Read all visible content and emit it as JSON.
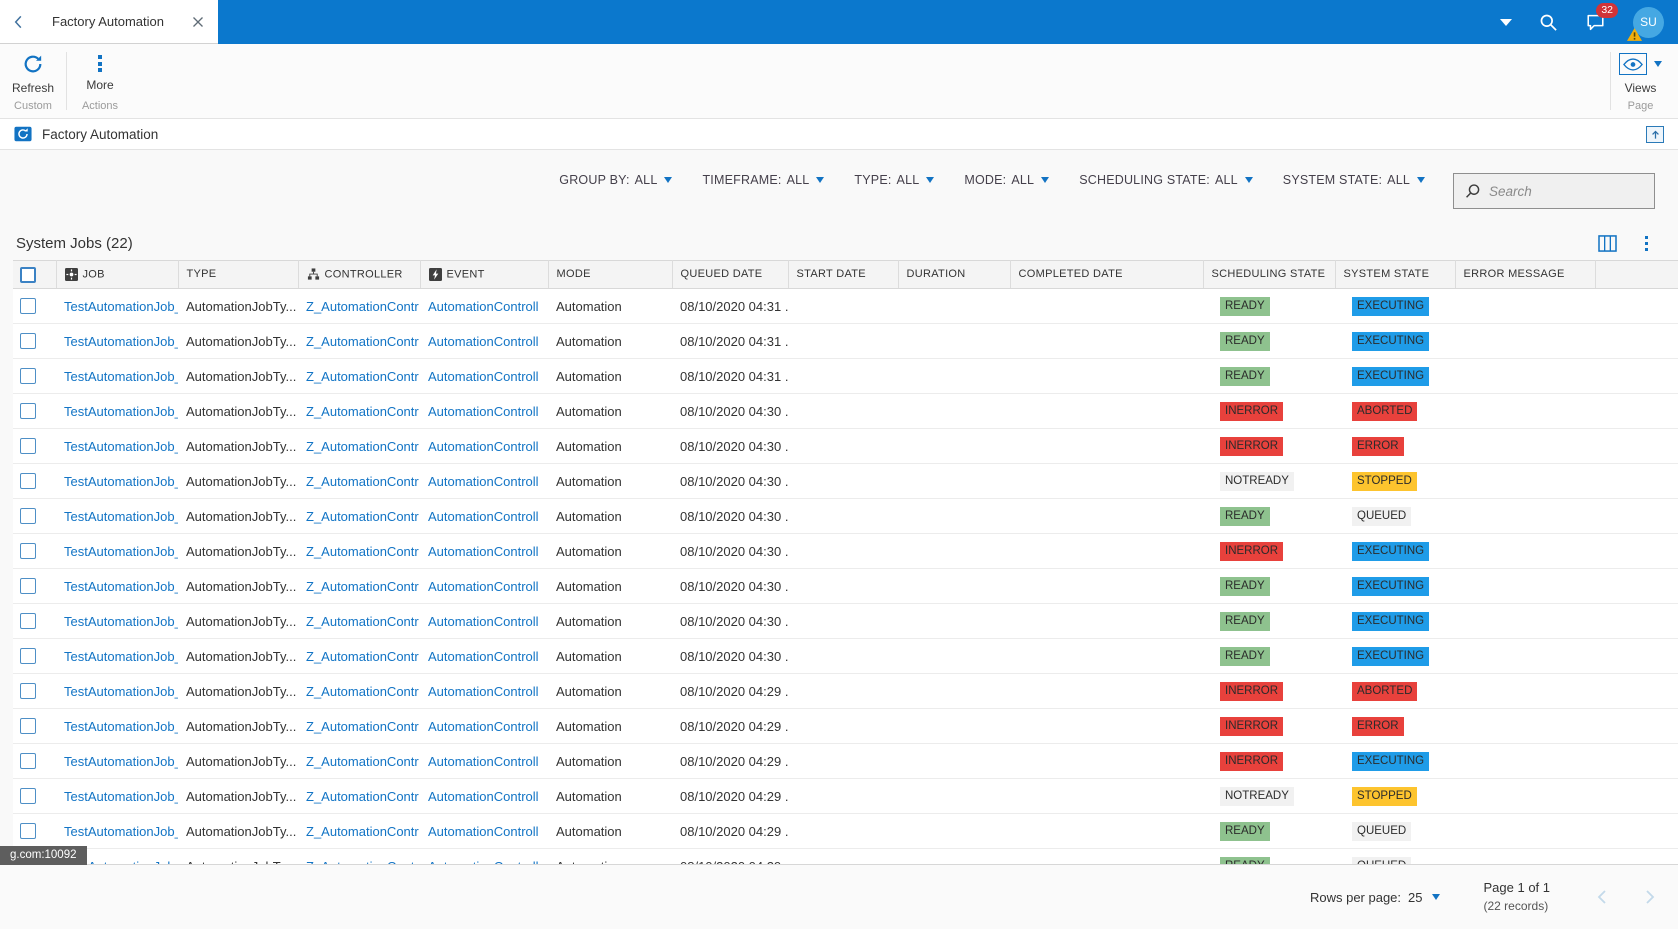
{
  "topbar": {
    "tab_title": "Factory Automation",
    "badge_count": "32",
    "avatar_initials": "SU"
  },
  "ribbon": {
    "refresh_label": "Refresh",
    "more_label": "More",
    "group_custom": "Custom",
    "group_actions": "Actions",
    "views_label": "Views",
    "group_page": "Page"
  },
  "page": {
    "title": "Factory Automation"
  },
  "filters": [
    {
      "label": "GROUP BY:",
      "value": "ALL"
    },
    {
      "label": "TIMEFRAME:",
      "value": "ALL"
    },
    {
      "label": "TYPE:",
      "value": "ALL"
    },
    {
      "label": "MODE:",
      "value": "ALL"
    },
    {
      "label": "SCHEDULING STATE:",
      "value": "ALL"
    },
    {
      "label": "SYSTEM STATE:",
      "value": "ALL"
    }
  ],
  "search": {
    "placeholder": "Search"
  },
  "grid": {
    "title": "System Jobs (22)",
    "columns": [
      {
        "label": "JOB",
        "icon": "entity"
      },
      {
        "label": "TYPE"
      },
      {
        "label": "CONTROLLER",
        "icon": "sitemap"
      },
      {
        "label": "EVENT",
        "icon": "lightning"
      },
      {
        "label": "MODE"
      },
      {
        "label": "QUEUED DATE"
      },
      {
        "label": "START DATE"
      },
      {
        "label": "DURATION"
      },
      {
        "label": "COMPLETED DATE"
      },
      {
        "label": "SCHEDULING STATE"
      },
      {
        "label": "SYSTEM STATE"
      },
      {
        "label": "ERROR MESSAGE"
      }
    ],
    "state_colors": {
      "READY": "#8ec28e",
      "INERROR": "#e8413c",
      "NOTREADY": "#f1f1f1",
      "EXECUTING": "#1f9ce8",
      "ABORTED": "#e8413c",
      "ERROR": "#e8413c",
      "STOPPED": "#fdc42e",
      "QUEUED": "#f1f1f1"
    },
    "rows": [
      {
        "job": "TestAutomationJob_",
        "type": "AutomationJobTy...",
        "controller": "Z_AutomationContr",
        "event": "AutomationControll",
        "mode": "Automation",
        "queued": "08/10/2020 04:31 ...",
        "start": "",
        "duration": "",
        "completed": "",
        "scheduling": "READY",
        "system": "EXECUTING",
        "error": ""
      },
      {
        "job": "TestAutomationJob_",
        "type": "AutomationJobTy...",
        "controller": "Z_AutomationContr",
        "event": "AutomationControll",
        "mode": "Automation",
        "queued": "08/10/2020 04:31 ...",
        "start": "",
        "duration": "",
        "completed": "",
        "scheduling": "READY",
        "system": "EXECUTING",
        "error": ""
      },
      {
        "job": "TestAutomationJob_",
        "type": "AutomationJobTy...",
        "controller": "Z_AutomationContr",
        "event": "AutomationControll",
        "mode": "Automation",
        "queued": "08/10/2020 04:31 ...",
        "start": "",
        "duration": "",
        "completed": "",
        "scheduling": "READY",
        "system": "EXECUTING",
        "error": ""
      },
      {
        "job": "TestAutomationJob_",
        "type": "AutomationJobTy...",
        "controller": "Z_AutomationContr",
        "event": "AutomationControll",
        "mode": "Automation",
        "queued": "08/10/2020 04:30 ...",
        "start": "",
        "duration": "",
        "completed": "",
        "scheduling": "INERROR",
        "system": "ABORTED",
        "error": ""
      },
      {
        "job": "TestAutomationJob_",
        "type": "AutomationJobTy...",
        "controller": "Z_AutomationContr",
        "event": "AutomationControll",
        "mode": "Automation",
        "queued": "08/10/2020 04:30 ...",
        "start": "",
        "duration": "",
        "completed": "",
        "scheduling": "INERROR",
        "system": "ERROR",
        "error": ""
      },
      {
        "job": "TestAutomationJob_",
        "type": "AutomationJobTy...",
        "controller": "Z_AutomationContr",
        "event": "AutomationControll",
        "mode": "Automation",
        "queued": "08/10/2020 04:30 ...",
        "start": "",
        "duration": "",
        "completed": "",
        "scheduling": "NOTREADY",
        "system": "STOPPED",
        "error": ""
      },
      {
        "job": "TestAutomationJob_",
        "type": "AutomationJobTy...",
        "controller": "Z_AutomationContr",
        "event": "AutomationControll",
        "mode": "Automation",
        "queued": "08/10/2020 04:30 ...",
        "start": "",
        "duration": "",
        "completed": "",
        "scheduling": "READY",
        "system": "QUEUED",
        "error": ""
      },
      {
        "job": "TestAutomationJob_",
        "type": "AutomationJobTy...",
        "controller": "Z_AutomationContr",
        "event": "AutomationControll",
        "mode": "Automation",
        "queued": "08/10/2020 04:30 ...",
        "start": "",
        "duration": "",
        "completed": "",
        "scheduling": "INERROR",
        "system": "EXECUTING",
        "error": ""
      },
      {
        "job": "TestAutomationJob_",
        "type": "AutomationJobTy...",
        "controller": "Z_AutomationContr",
        "event": "AutomationControll",
        "mode": "Automation",
        "queued": "08/10/2020 04:30 ...",
        "start": "",
        "duration": "",
        "completed": "",
        "scheduling": "READY",
        "system": "EXECUTING",
        "error": ""
      },
      {
        "job": "TestAutomationJob_",
        "type": "AutomationJobTy...",
        "controller": "Z_AutomationContr",
        "event": "AutomationControll",
        "mode": "Automation",
        "queued": "08/10/2020 04:30 ...",
        "start": "",
        "duration": "",
        "completed": "",
        "scheduling": "READY",
        "system": "EXECUTING",
        "error": ""
      },
      {
        "job": "TestAutomationJob_",
        "type": "AutomationJobTy...",
        "controller": "Z_AutomationContr",
        "event": "AutomationControll",
        "mode": "Automation",
        "queued": "08/10/2020 04:30 ...",
        "start": "",
        "duration": "",
        "completed": "",
        "scheduling": "READY",
        "system": "EXECUTING",
        "error": ""
      },
      {
        "job": "TestAutomationJob_",
        "type": "AutomationJobTy...",
        "controller": "Z_AutomationContr",
        "event": "AutomationControll",
        "mode": "Automation",
        "queued": "08/10/2020 04:29 ...",
        "start": "",
        "duration": "",
        "completed": "",
        "scheduling": "INERROR",
        "system": "ABORTED",
        "error": ""
      },
      {
        "job": "TestAutomationJob_",
        "type": "AutomationJobTy...",
        "controller": "Z_AutomationContr",
        "event": "AutomationControll",
        "mode": "Automation",
        "queued": "08/10/2020 04:29 ...",
        "start": "",
        "duration": "",
        "completed": "",
        "scheduling": "INERROR",
        "system": "ERROR",
        "error": ""
      },
      {
        "job": "TestAutomationJob_",
        "type": "AutomationJobTy...",
        "controller": "Z_AutomationContr",
        "event": "AutomationControll",
        "mode": "Automation",
        "queued": "08/10/2020 04:29 ...",
        "start": "",
        "duration": "",
        "completed": "",
        "scheduling": "INERROR",
        "system": "EXECUTING",
        "error": ""
      },
      {
        "job": "TestAutomationJob_",
        "type": "AutomationJobTy...",
        "controller": "Z_AutomationContr",
        "event": "AutomationControll",
        "mode": "Automation",
        "queued": "08/10/2020 04:29 ...",
        "start": "",
        "duration": "",
        "completed": "",
        "scheduling": "NOTREADY",
        "system": "STOPPED",
        "error": ""
      },
      {
        "job": "TestAutomationJob_",
        "type": "AutomationJobTy...",
        "controller": "Z_AutomationContr",
        "event": "AutomationControll",
        "mode": "Automation",
        "queued": "08/10/2020 04:29 ...",
        "start": "",
        "duration": "",
        "completed": "",
        "scheduling": "READY",
        "system": "QUEUED",
        "error": ""
      },
      {
        "job": "TestAutomationJob_",
        "type": "AutomationJobTy...",
        "controller": "Z_AutomationContr",
        "event": "AutomationControll",
        "mode": "Automation",
        "queued": "08/10/2020 04:29 ...",
        "start": "",
        "duration": "",
        "completed": "",
        "scheduling": "READY",
        "system": "QUEUED",
        "error": ""
      }
    ]
  },
  "footer": {
    "rows_per_page_label": "Rows per page:",
    "rows_per_page_value": "25",
    "page_label": "Page 1 of 1",
    "records_label": "(22 records)"
  },
  "statusbar": {
    "url_text": "g.com:10092"
  },
  "colors": {
    "topbar": "#0b78cd",
    "accent": "#1273c3",
    "link": "#1274c5",
    "notification_badge": "#d13438"
  },
  "icon_names": [
    "chevron-left-icon",
    "close-icon",
    "chevron-down-icon",
    "search-icon",
    "chat-icon",
    "warning-icon",
    "avatar",
    "refresh-icon",
    "more-dots-icon",
    "eye-icon",
    "factory-icon",
    "expand-icon",
    "entity-icon",
    "sitemap-icon",
    "lightning-icon",
    "columns-icon",
    "grid-more-icon",
    "previous-page-icon",
    "next-page-icon"
  ]
}
